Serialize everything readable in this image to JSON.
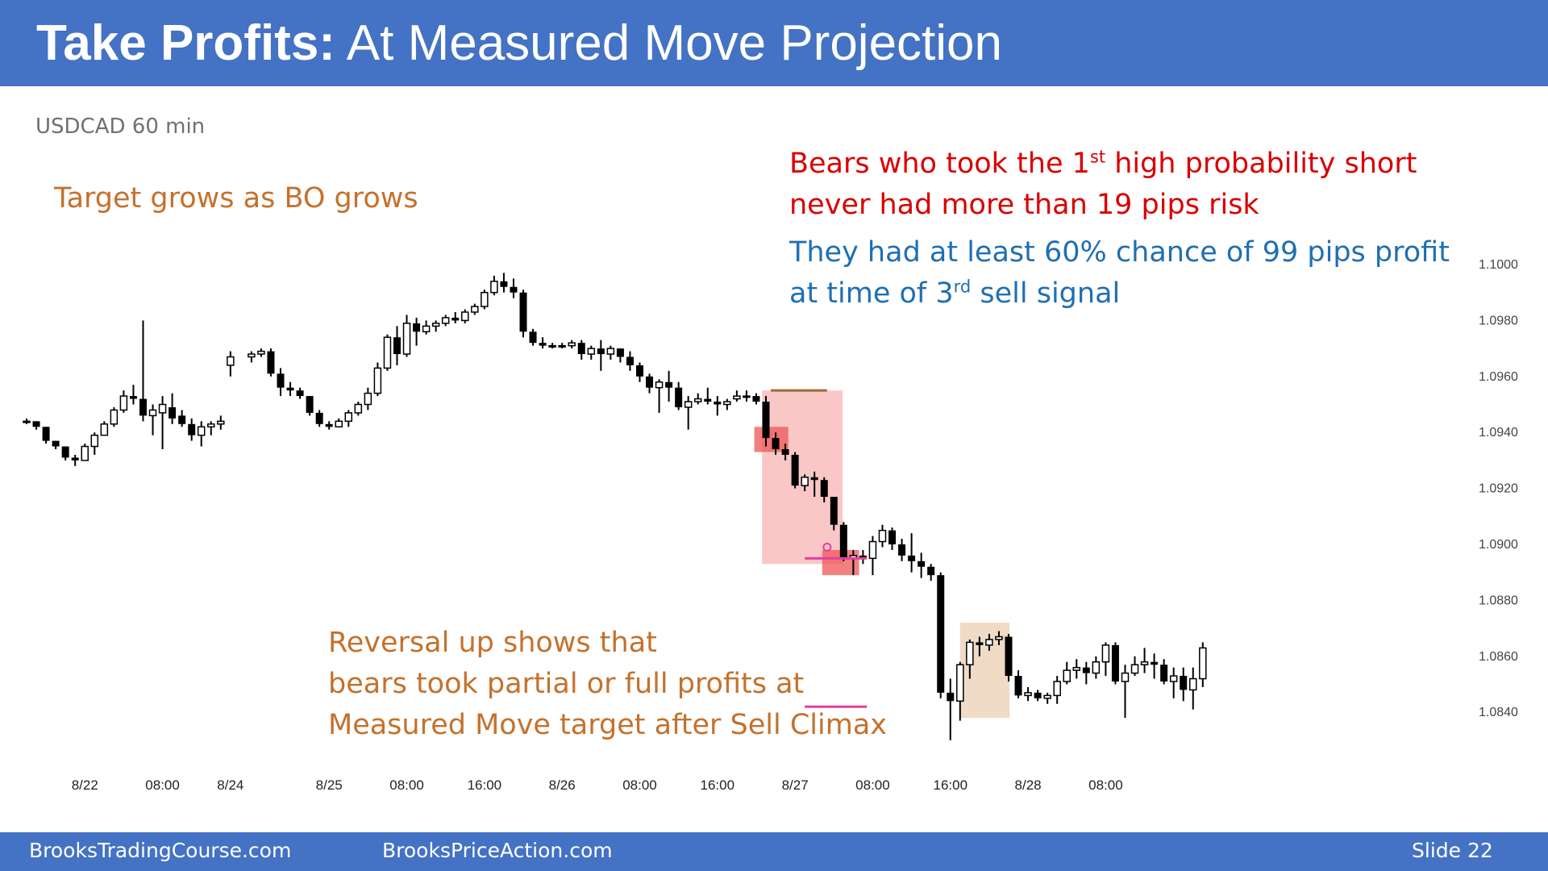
{
  "slide": {
    "title_bold": "Take Profits:",
    "title_rest": " At Measured Move Projection",
    "symbol": "USDCAD 60 min",
    "target_note": "Target grows as BO grows",
    "bears_note": {
      "line1_a": "Bears who took the 1",
      "line1_sup": "st",
      "line1_b": " high probability short",
      "line2": "never had more than 19 pips risk"
    },
    "chance_note": {
      "line1": "They had at least 60% chance of 99 pips profit",
      "line2_a": "at time of 3",
      "line2_sup": "rd",
      "line2_b": " sell signal"
    },
    "reversal_note": {
      "line1": "Reversal up shows that",
      "line2": "bears took partial or full profits at",
      "line3": "Measured Move target after Sell Climax"
    },
    "footer": {
      "left": "BrooksTradingCourse.com",
      "middle": "BrooksPriceAction.com",
      "right": "Slide  22"
    }
  },
  "colors": {
    "title_bar": "#4472c4",
    "bull_body": "#ffffff",
    "bear_body": "#000000",
    "breakout_zone": "#f8b4b4",
    "signal_highlight": "#ee5555",
    "reversal_zone": "#ecd5bc",
    "measured_move_line": "#e040a0",
    "top_marker_line": "#9e6b3a"
  },
  "chart_data": {
    "type": "candlestick",
    "symbol": "USDCAD",
    "timeframe": "60 min",
    "ylim": [
      1.0828,
      1.1006
    ],
    "y_ticks": [
      "1.1000",
      "1.0980",
      "1.0960",
      "1.0940",
      "1.0920",
      "1.0900",
      "1.0880",
      "1.0860",
      "1.0840"
    ],
    "x_ticks": [
      {
        "bar": 6,
        "label": "8/22"
      },
      {
        "bar": 14,
        "label": "08:00"
      },
      {
        "bar": 21,
        "label": "8/24"
      },
      {
        "bar": 30,
        "label": "8/25"
      },
      {
        "bar": 38,
        "label": "08:00"
      },
      {
        "bar": 46,
        "label": "16:00"
      },
      {
        "bar": 54,
        "label": "8/26"
      },
      {
        "bar": 62,
        "label": "08:00"
      },
      {
        "bar": 70,
        "label": "16:00"
      },
      {
        "bar": 78,
        "label": "8/27"
      },
      {
        "bar": 86,
        "label": "08:00"
      },
      {
        "bar": 94,
        "label": "16:00"
      },
      {
        "bar": 102,
        "label": "8/28"
      },
      {
        "bar": 110,
        "label": "08:00"
      }
    ],
    "gaps_after_bar": [
      21
    ],
    "bars": [
      [
        1.0944,
        1.0945,
        1.0943,
        1.0944
      ],
      [
        1.0944,
        1.0944,
        1.0941,
        1.0942
      ],
      [
        1.0942,
        1.0942,
        1.0936,
        1.0937
      ],
      [
        1.0937,
        1.0937,
        1.0934,
        1.0935
      ],
      [
        1.0935,
        1.0935,
        1.093,
        1.0931
      ],
      [
        1.0931,
        1.0932,
        1.0928,
        1.093
      ],
      [
        1.093,
        1.0936,
        1.093,
        1.0935
      ],
      [
        1.0935,
        1.094,
        1.0932,
        1.0939
      ],
      [
        1.0939,
        1.0944,
        1.0939,
        1.0943
      ],
      [
        1.0943,
        1.0949,
        1.0942,
        1.0948
      ],
      [
        1.0948,
        1.0955,
        1.0947,
        1.0953
      ],
      [
        1.0953,
        1.0957,
        1.095,
        1.0952
      ],
      [
        1.0952,
        1.098,
        1.0944,
        1.0946
      ],
      [
        1.0946,
        1.095,
        1.0939,
        1.0948
      ],
      [
        1.0947,
        1.0953,
        1.0934,
        1.095
      ],
      [
        1.0949,
        1.0954,
        1.0943,
        1.0945
      ],
      [
        1.0946,
        1.0948,
        1.0942,
        1.0943
      ],
      [
        1.0943,
        1.0945,
        1.0937,
        1.0939
      ],
      [
        1.0939,
        1.0944,
        1.0935,
        1.0942
      ],
      [
        1.0942,
        1.0944,
        1.0939,
        1.0943
      ],
      [
        1.0943,
        1.0946,
        1.0941,
        1.0944
      ],
      [
        1.0964,
        1.0969,
        1.096,
        1.0967
      ],
      [
        1.0967,
        1.0969,
        1.0965,
        1.0968
      ],
      [
        1.0968,
        1.097,
        1.0967,
        1.0969
      ],
      [
        1.0969,
        1.097,
        1.096,
        1.0961
      ],
      [
        1.0961,
        1.0963,
        1.0953,
        1.0956
      ],
      [
        1.0956,
        1.0958,
        1.0953,
        1.0955
      ],
      [
        1.0955,
        1.0956,
        1.0952,
        1.0953
      ],
      [
        1.0953,
        1.0953,
        1.0946,
        1.0947
      ],
      [
        1.0947,
        1.0948,
        1.0942,
        1.0943
      ],
      [
        1.0943,
        1.0944,
        1.0941,
        1.0942
      ],
      [
        1.0942,
        1.0945,
        1.0942,
        1.0944
      ],
      [
        1.0944,
        1.0948,
        1.0942,
        1.0947
      ],
      [
        1.0947,
        1.0951,
        1.0946,
        1.095
      ],
      [
        1.095,
        1.0956,
        1.0948,
        1.0954
      ],
      [
        1.0954,
        1.0965,
        1.0953,
        1.0963
      ],
      [
        1.0963,
        1.0975,
        1.0962,
        1.0974
      ],
      [
        1.0974,
        1.0978,
        1.0964,
        1.0968
      ],
      [
        1.0968,
        1.0982,
        1.0967,
        1.0979
      ],
      [
        1.0979,
        1.0981,
        1.0971,
        1.0976
      ],
      [
        1.0976,
        1.098,
        1.0975,
        1.0978
      ],
      [
        1.0978,
        1.098,
        1.0976,
        1.0979
      ],
      [
        1.0979,
        1.0982,
        1.0978,
        1.0981
      ],
      [
        1.0981,
        1.0983,
        1.0979,
        1.098
      ],
      [
        1.098,
        1.0984,
        1.0979,
        1.0983
      ],
      [
        1.0983,
        1.0986,
        1.0982,
        1.0985
      ],
      [
        1.0985,
        1.0991,
        1.0984,
        1.099
      ],
      [
        1.099,
        1.0996,
        1.0989,
        1.0994
      ],
      [
        1.0994,
        1.0997,
        1.099,
        1.0992
      ],
      [
        1.0992,
        1.0995,
        1.0988,
        1.099
      ],
      [
        1.099,
        1.0991,
        1.0974,
        1.0976
      ],
      [
        1.0976,
        1.0977,
        1.0971,
        1.0972
      ],
      [
        1.0972,
        1.0974,
        1.097,
        1.0971
      ],
      [
        1.0971,
        1.0972,
        1.097,
        1.0971
      ],
      [
        1.0971,
        1.0972,
        1.097,
        1.0971
      ],
      [
        1.0971,
        1.0973,
        1.097,
        1.0972
      ],
      [
        1.0972,
        1.0973,
        1.0966,
        1.0968
      ],
      [
        1.0968,
        1.0971,
        1.0966,
        1.097
      ],
      [
        1.097,
        1.0973,
        1.0962,
        1.0968
      ],
      [
        1.0968,
        1.0971,
        1.0966,
        1.097
      ],
      [
        1.097,
        1.097,
        1.0965,
        1.0967
      ],
      [
        1.0967,
        1.0969,
        1.0962,
        1.0964
      ],
      [
        1.0964,
        1.0965,
        1.0958,
        1.096
      ],
      [
        1.096,
        1.0961,
        1.0954,
        1.0956
      ],
      [
        1.0956,
        1.0959,
        1.0947,
        1.0958
      ],
      [
        1.0958,
        1.0962,
        1.0951,
        1.0956
      ],
      [
        1.0956,
        1.0958,
        1.0948,
        1.0949
      ],
      [
        1.0949,
        1.0953,
        1.0941,
        1.0951
      ],
      [
        1.0951,
        1.0954,
        1.095,
        1.0952
      ],
      [
        1.0952,
        1.0956,
        1.095,
        1.0951
      ],
      [
        1.0951,
        1.0953,
        1.0946,
        1.095
      ],
      [
        1.095,
        1.0952,
        1.0948,
        1.0951
      ],
      [
        1.0952,
        1.0955,
        1.0951,
        1.0953
      ],
      [
        1.0953,
        1.0955,
        1.0951,
        1.0953
      ],
      [
        1.0953,
        1.0954,
        1.095,
        1.0951
      ],
      [
        1.0951,
        1.0953,
        1.0935,
        1.0938
      ],
      [
        1.0938,
        1.094,
        1.0932,
        1.0934
      ],
      [
        1.0934,
        1.0936,
        1.093,
        1.0932
      ],
      [
        1.0932,
        1.0933,
        1.092,
        1.0921
      ],
      [
        1.0921,
        1.0925,
        1.0919,
        1.0924
      ],
      [
        1.0924,
        1.0926,
        1.0917,
        1.0923
      ],
      [
        1.0923,
        1.0924,
        1.0915,
        1.0917
      ],
      [
        1.0917,
        1.0917,
        1.0905,
        1.0907
      ],
      [
        1.0907,
        1.0908,
        1.0894,
        1.0895
      ],
      [
        1.0895,
        1.0898,
        1.0889,
        1.0896
      ],
      [
        1.0896,
        1.0898,
        1.0893,
        1.0895
      ],
      [
        1.0895,
        1.0903,
        1.0889,
        1.0901
      ],
      [
        1.0901,
        1.0907,
        1.0899,
        1.0905
      ],
      [
        1.0905,
        1.0906,
        1.0898,
        1.09
      ],
      [
        1.09,
        1.0902,
        1.0894,
        1.0896
      ],
      [
        1.0896,
        1.0904,
        1.089,
        1.0894
      ],
      [
        1.0894,
        1.0897,
        1.0888,
        1.0892
      ],
      [
        1.0892,
        1.0893,
        1.0887,
        1.0889
      ],
      [
        1.0889,
        1.089,
        1.0845,
        1.0847
      ],
      [
        1.0847,
        1.0852,
        1.083,
        1.0844
      ],
      [
        1.0844,
        1.0858,
        1.0837,
        1.0857
      ],
      [
        1.0857,
        1.0866,
        1.0852,
        1.0865
      ],
      [
        1.0865,
        1.0867,
        1.086,
        1.0864
      ],
      [
        1.0864,
        1.0868,
        1.0862,
        1.0866
      ],
      [
        1.0866,
        1.0869,
        1.0864,
        1.0867
      ],
      [
        1.0867,
        1.0868,
        1.0851,
        1.0853
      ],
      [
        1.0853,
        1.0855,
        1.0845,
        1.0846
      ],
      [
        1.0846,
        1.0849,
        1.0844,
        1.0847
      ],
      [
        1.0847,
        1.0848,
        1.0844,
        1.0845
      ],
      [
        1.0845,
        1.0847,
        1.0843,
        1.0846
      ],
      [
        1.0846,
        1.0853,
        1.0843,
        1.0851
      ],
      [
        1.0851,
        1.0858,
        1.085,
        1.0855
      ],
      [
        1.0855,
        1.0859,
        1.0852,
        1.0856
      ],
      [
        1.0856,
        1.0858,
        1.085,
        1.0854
      ],
      [
        1.0854,
        1.086,
        1.0852,
        1.0858
      ],
      [
        1.0858,
        1.0865,
        1.0853,
        1.0864
      ],
      [
        1.0864,
        1.0865,
        1.085,
        1.0851
      ],
      [
        1.0851,
        1.0857,
        1.0838,
        1.0854
      ],
      [
        1.0854,
        1.086,
        1.0853,
        1.0857
      ],
      [
        1.0857,
        1.0863,
        1.0854,
        1.0858
      ],
      [
        1.0858,
        1.0861,
        1.0852,
        1.0857
      ],
      [
        1.0857,
        1.0859,
        1.085,
        1.0851
      ],
      [
        1.0851,
        1.0856,
        1.0845,
        1.0853
      ],
      [
        1.0853,
        1.0856,
        1.0844,
        1.0848
      ],
      [
        1.0848,
        1.0856,
        1.0841,
        1.0852
      ],
      [
        1.0852,
        1.0865,
        1.0849,
        1.0863
      ]
    ],
    "overlays": [
      {
        "type": "zone",
        "name": "breakout-zone",
        "x_bars": [
          74.6,
          82.9
        ],
        "y": [
          1.0893,
          1.0955
        ]
      },
      {
        "type": "zone",
        "name": "first-signal-highlight",
        "x_bars": [
          73.8,
          77.3
        ],
        "y": [
          1.0933,
          1.0942
        ]
      },
      {
        "type": "zone",
        "name": "third-signal-highlight",
        "x_bars": [
          80.8,
          84.6
        ],
        "y": [
          1.0889,
          1.0898
        ]
      },
      {
        "type": "zone",
        "name": "reversal-zone",
        "x_bars": [
          95.0,
          100.1
        ],
        "y": [
          1.0838,
          1.0872
        ]
      },
      {
        "type": "hline",
        "name": "top-marker-line",
        "x_bars": [
          75.5,
          81.3
        ],
        "y": 1.0955
      },
      {
        "type": "hline",
        "name": "entry-line",
        "x_bars": [
          79.0,
          85.4
        ],
        "y": 1.0895
      },
      {
        "type": "hline",
        "name": "measured-move-target-line",
        "x_bars": [
          79.0,
          85.4
        ],
        "y": 1.0842
      },
      {
        "type": "marker",
        "name": "sell-signal-circle",
        "x_bar": 81.3,
        "y": 1.0899
      }
    ]
  }
}
